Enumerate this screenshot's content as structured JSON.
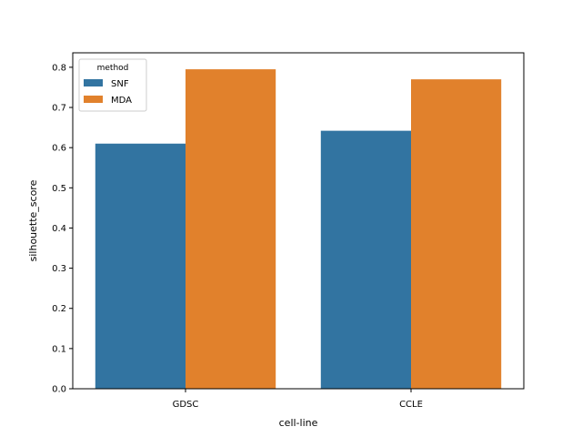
{
  "chart_data": {
    "type": "bar",
    "title": "",
    "xlabel": "cell-line",
    "ylabel": "silhouette_score",
    "categories": [
      "GDSC",
      "CCLE"
    ],
    "series": [
      {
        "name": "SNF",
        "values": [
          0.61,
          0.642
        ],
        "color": "#3274a1"
      },
      {
        "name": "MDA",
        "values": [
          0.795,
          0.77
        ],
        "color": "#e1812c"
      }
    ],
    "ylim": [
      0,
      0.836
    ],
    "yticks": [
      "0.0",
      "0.1",
      "0.2",
      "0.3",
      "0.4",
      "0.5",
      "0.6",
      "0.7",
      "0.8"
    ],
    "grid": false,
    "legend": {
      "title": "method",
      "placement": "top-left"
    }
  }
}
